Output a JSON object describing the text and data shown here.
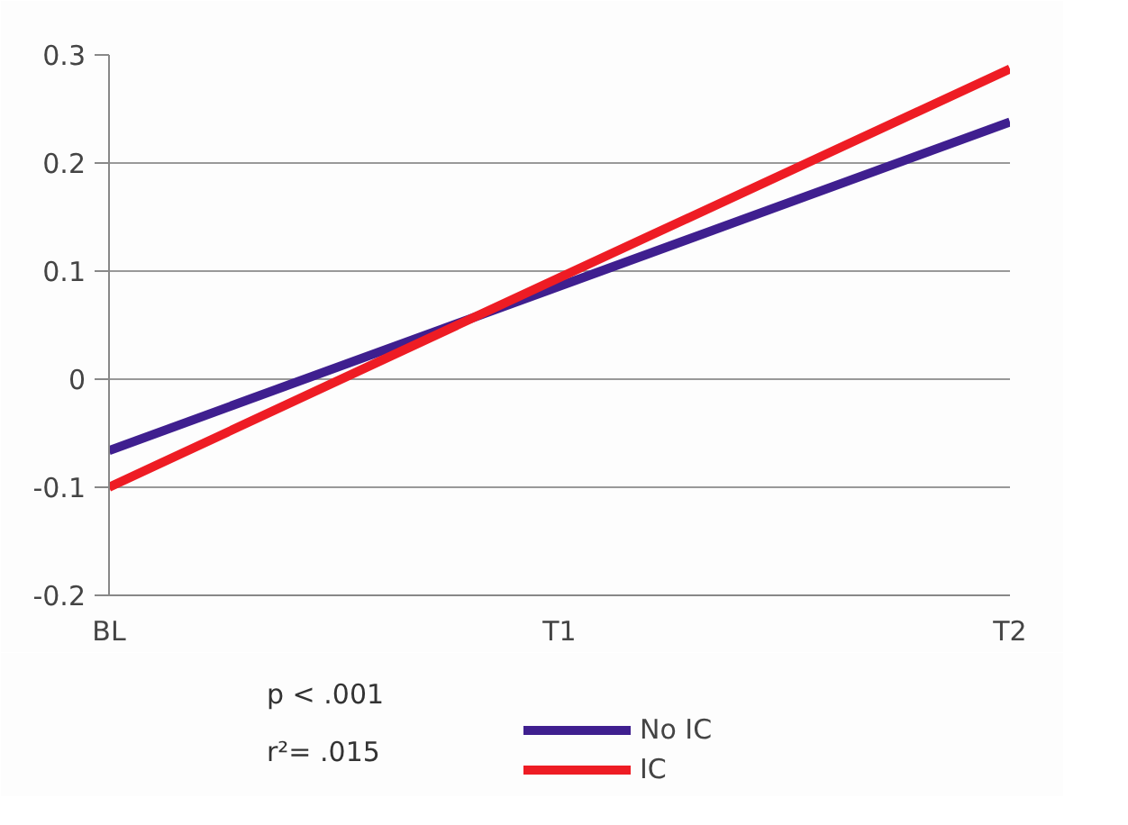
{
  "chart_data": {
    "type": "line",
    "categories": [
      "BL",
      "T1",
      "T2"
    ],
    "series": [
      {
        "name": "No IC",
        "color": "#3f1f8f",
        "values": [
          -0.066,
          0.086,
          0.238
        ]
      },
      {
        "name": "IC",
        "color": "#ee1c24",
        "values": [
          -0.1,
          0.094,
          0.287
        ]
      }
    ],
    "ylim": [
      -0.2,
      0.3
    ],
    "yticks": [
      -0.2,
      -0.1,
      0,
      0.1,
      0.2,
      0.3
    ],
    "grid": "y",
    "legend": "bottom right",
    "marker": "none",
    "line_style": "solid",
    "annotations": [
      "p < .001",
      "r²= .015"
    ]
  }
}
